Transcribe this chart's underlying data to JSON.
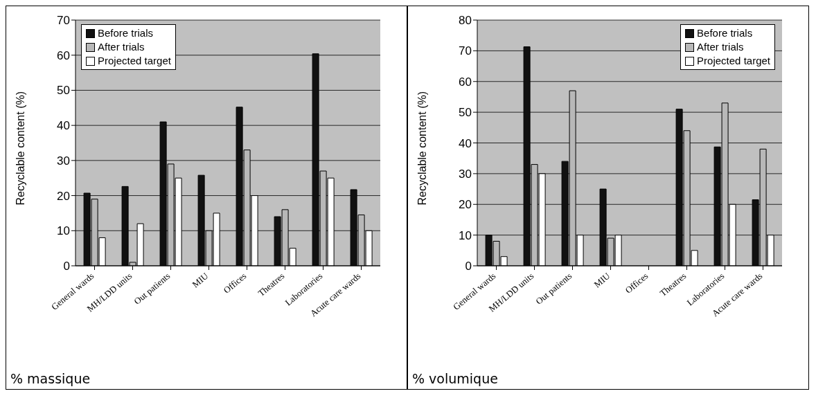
{
  "chart_data": [
    {
      "type": "bar",
      "ylabel": "Recyclable content (%)",
      "categories": [
        "General wards",
        "MH/LDD units",
        "Out patients",
        "MIU",
        "Offices",
        "Theatres",
        "Laboratories",
        "Acute care wards"
      ],
      "series": [
        {
          "name": "Before trials",
          "color": "#111111",
          "values": [
            20.7,
            22.6,
            41,
            25.8,
            45.2,
            14,
            60.4,
            21.7
          ]
        },
        {
          "name": "After trials",
          "color": "#b8b8b8",
          "values": [
            19,
            1,
            29,
            10,
            33,
            16,
            27,
            14.5
          ]
        },
        {
          "name": "Projected target",
          "color": "#ffffff",
          "values": [
            8,
            12,
            25,
            15,
            20,
            5,
            25,
            10
          ]
        }
      ],
      "ylim": [
        0,
        70
      ],
      "yticks": [
        0,
        10,
        20,
        30,
        40,
        50,
        60,
        70
      ],
      "grid": "y",
      "legend": "top left",
      "annotations": [
        "% massique"
      ]
    },
    {
      "type": "bar",
      "ylabel": "Recyclable content (%)",
      "categories": [
        "General wards",
        "MH/LDD units",
        "Out patients",
        "MIU",
        "Offices",
        "Theatres",
        "Laboratories",
        "Acute care wards"
      ],
      "series": [
        {
          "name": "Before trials",
          "color": "#111111",
          "values": [
            10,
            71.3,
            34,
            25,
            null,
            51,
            38.7,
            21.5
          ]
        },
        {
          "name": "After trials",
          "color": "#b8b8b8",
          "values": [
            8,
            33,
            57,
            9,
            null,
            44,
            53,
            38
          ]
        },
        {
          "name": "Projected target",
          "color": "#ffffff",
          "values": [
            3,
            30,
            10,
            10,
            null,
            5,
            20,
            10
          ]
        }
      ],
      "ylim": [
        0,
        80
      ],
      "yticks": [
        0,
        10,
        20,
        30,
        40,
        50,
        60,
        70,
        80
      ],
      "grid": "y",
      "legend": "top right",
      "annotations": [
        "% volumique"
      ]
    }
  ]
}
